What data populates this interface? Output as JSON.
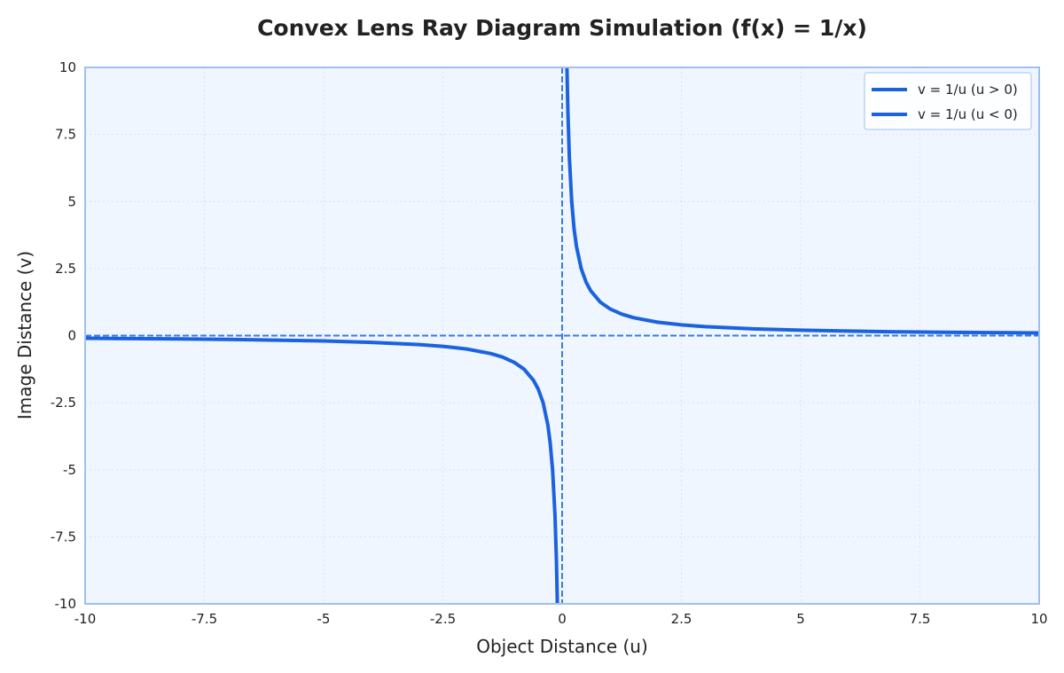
{
  "chart_data": {
    "type": "line",
    "title": "Convex Lens Ray Diagram Simulation (f(x) = 1/x)",
    "xlabel": "Object Distance (u)",
    "ylabel": "Image Distance (v)",
    "xlim": [
      -10,
      10
    ],
    "ylim": [
      -10,
      10
    ],
    "x_ticks": [
      -10,
      -7.5,
      -5,
      -2.5,
      0,
      2.5,
      5,
      7.5,
      10
    ],
    "x_tick_labels": [
      "-10",
      "-7.5",
      "-5",
      "-2.5",
      "0",
      "2.5",
      "5",
      "7.5",
      "10"
    ],
    "y_ticks": [
      -10,
      -7.5,
      -5,
      -2.5,
      0,
      2.5,
      5,
      7.5,
      10
    ],
    "y_tick_labels": [
      "-10",
      "-7.5",
      "-5",
      "-2.5",
      "0",
      "2.5",
      "5",
      "7.5",
      "10"
    ],
    "grid": true,
    "legend_position": "top-right",
    "series": [
      {
        "name": "v = 1/u (u > 0)",
        "color": "#1a62e0",
        "x": [
          0.1,
          0.12,
          0.15,
          0.2,
          0.25,
          0.3,
          0.4,
          0.5,
          0.6,
          0.8,
          1,
          1.25,
          1.5,
          2,
          2.5,
          3,
          4,
          5,
          6,
          7,
          8,
          9,
          10
        ],
        "y": [
          10,
          8.333,
          6.667,
          5,
          4,
          3.333,
          2.5,
          2,
          1.667,
          1.25,
          1,
          0.8,
          0.667,
          0.5,
          0.4,
          0.333,
          0.25,
          0.2,
          0.167,
          0.143,
          0.125,
          0.111,
          0.1
        ]
      },
      {
        "name": "v = 1/u (u < 0)",
        "color": "#1a62e0",
        "x": [
          -10,
          -9,
          -8,
          -7,
          -6,
          -5,
          -4,
          -3,
          -2.5,
          -2,
          -1.5,
          -1.25,
          -1,
          -0.8,
          -0.6,
          -0.5,
          -0.4,
          -0.3,
          -0.25,
          -0.2,
          -0.15,
          -0.12,
          -0.1
        ],
        "y": [
          -0.1,
          -0.111,
          -0.125,
          -0.143,
          -0.167,
          -0.2,
          -0.25,
          -0.333,
          -0.4,
          -0.5,
          -0.667,
          -0.8,
          -1,
          -1.25,
          -1.667,
          -2,
          -2.5,
          -3.333,
          -4,
          -5,
          -6.667,
          -8.333,
          -10
        ]
      }
    ],
    "reference_lines": {
      "horizontal_y": 0,
      "vertical_x": 0,
      "color": "#3a7be6"
    },
    "colors": {
      "plot_background": "#f0f6ff",
      "frame": "#9ec0f0",
      "grid": "#d6e2f2"
    }
  }
}
